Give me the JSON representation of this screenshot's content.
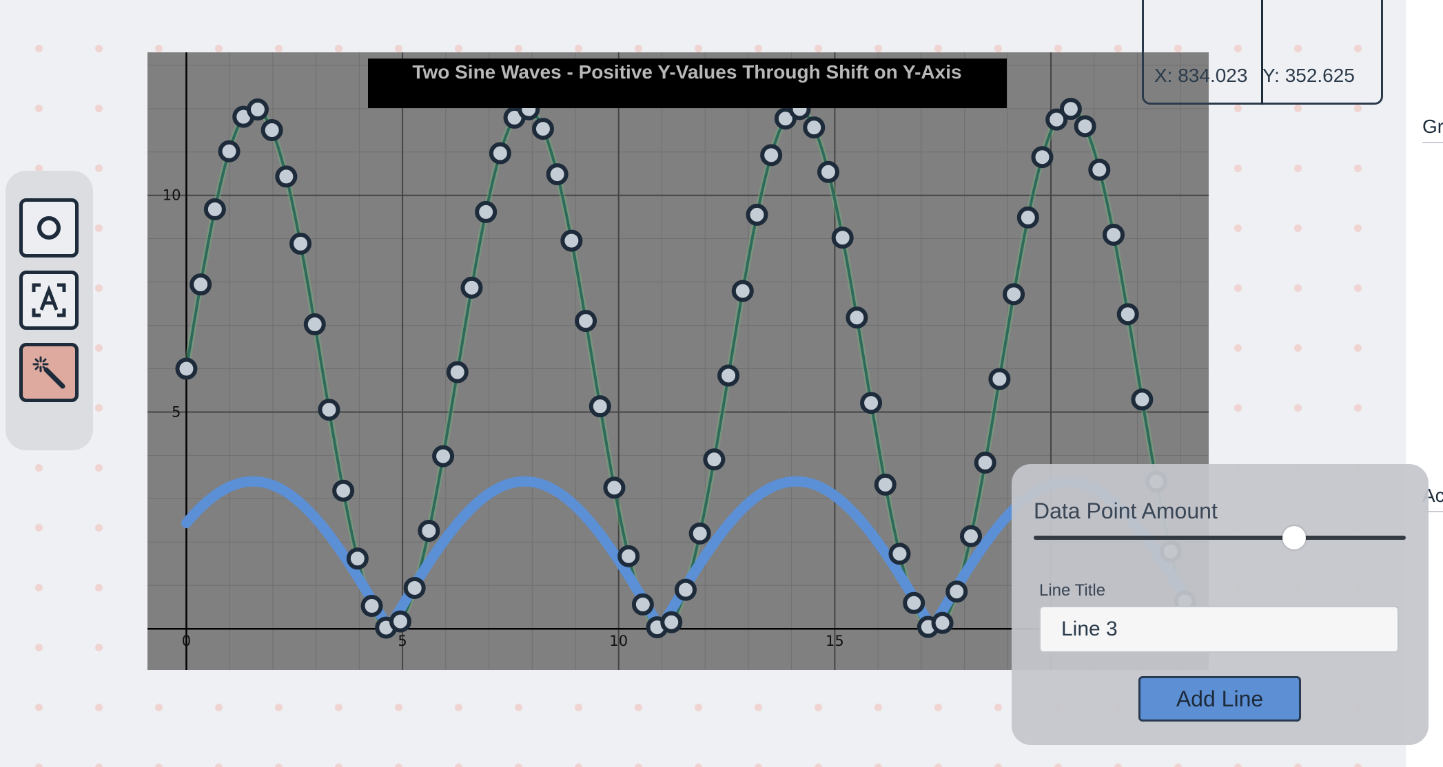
{
  "toolbar": {
    "tools": [
      {
        "name": "circle-tool",
        "icon": "circle-icon"
      },
      {
        "name": "text-tool",
        "icon": "text-frame-icon"
      },
      {
        "name": "magic-wand-tool",
        "icon": "magic-wand-icon",
        "active": true
      }
    ]
  },
  "coords": {
    "x_text": "X: 834.023",
    "y_text": "Y: 352.625"
  },
  "right_edge": {
    "label_top": "Gr",
    "label_mid": "Ac"
  },
  "line_panel": {
    "data_point_label": "Data Point Amount",
    "data_point_level": 0.7,
    "line_title_label": "Line Title",
    "line_title_value": "Line 3",
    "add_button_label": "Add Line"
  },
  "chart_data": {
    "type": "line",
    "title": "Two Sine Waves - Positive Y-Values Through Shift on Y-Axis",
    "background": "#808080",
    "grid": true,
    "xlim": [
      -0.9,
      23.65
    ],
    "ylim": [
      -0.95,
      13.3
    ],
    "x_ticks": [
      0,
      5,
      10,
      15
    ],
    "y_ticks": [
      5,
      10
    ],
    "x_tick_labels": [
      "0",
      "5",
      "10",
      "15"
    ],
    "y_tick_labels": [
      "5",
      "10"
    ],
    "series": [
      {
        "function": "6 + 6*sin(x)",
        "x_range": [
          0,
          23.4
        ],
        "markers": true,
        "marker_step": 0.33,
        "color": "#2e6b5a"
      },
      {
        "function": "|3.4*sin(0.5*x + 0.8)|",
        "x_range": [
          0,
          23.4
        ],
        "markers": false,
        "color": "#5b8fd6"
      }
    ]
  }
}
